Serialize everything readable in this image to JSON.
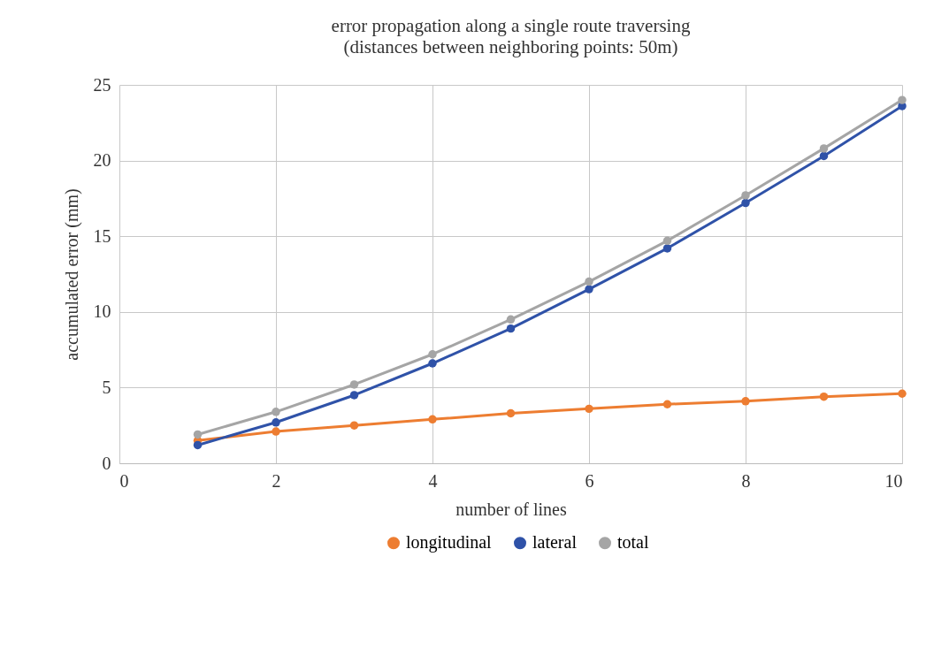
{
  "chart_data": {
    "type": "line",
    "title": "error propagation along a single route traversing",
    "subtitle": "(distances between neighboring points: 50m)",
    "xlabel": "number of lines",
    "ylabel": "accumulated error (mm)",
    "x": [
      1,
      2,
      3,
      4,
      5,
      6,
      7,
      8,
      9,
      10
    ],
    "series": [
      {
        "name": "longitudinal",
        "color": "#ed7d31",
        "values": [
          1.5,
          2.1,
          2.5,
          2.9,
          3.3,
          3.6,
          3.9,
          4.1,
          4.4,
          4.6
        ]
      },
      {
        "name": "lateral",
        "color": "#2f52a8",
        "values": [
          1.2,
          2.7,
          4.5,
          6.6,
          8.9,
          11.5,
          14.2,
          17.2,
          20.3,
          23.6
        ]
      },
      {
        "name": "total",
        "color": "#a5a5a5",
        "values": [
          1.9,
          3.4,
          5.2,
          7.2,
          9.5,
          12.0,
          14.7,
          17.7,
          20.8,
          24.0
        ]
      }
    ],
    "xlim": [
      0,
      10
    ],
    "xticks": [
      0,
      2,
      4,
      6,
      8,
      10
    ],
    "ylim": [
      0,
      25
    ],
    "yticks": [
      0,
      5,
      10,
      15,
      20,
      25
    ],
    "grid": true,
    "legend": "bottom",
    "marker": "circle",
    "line_style": "solid"
  }
}
